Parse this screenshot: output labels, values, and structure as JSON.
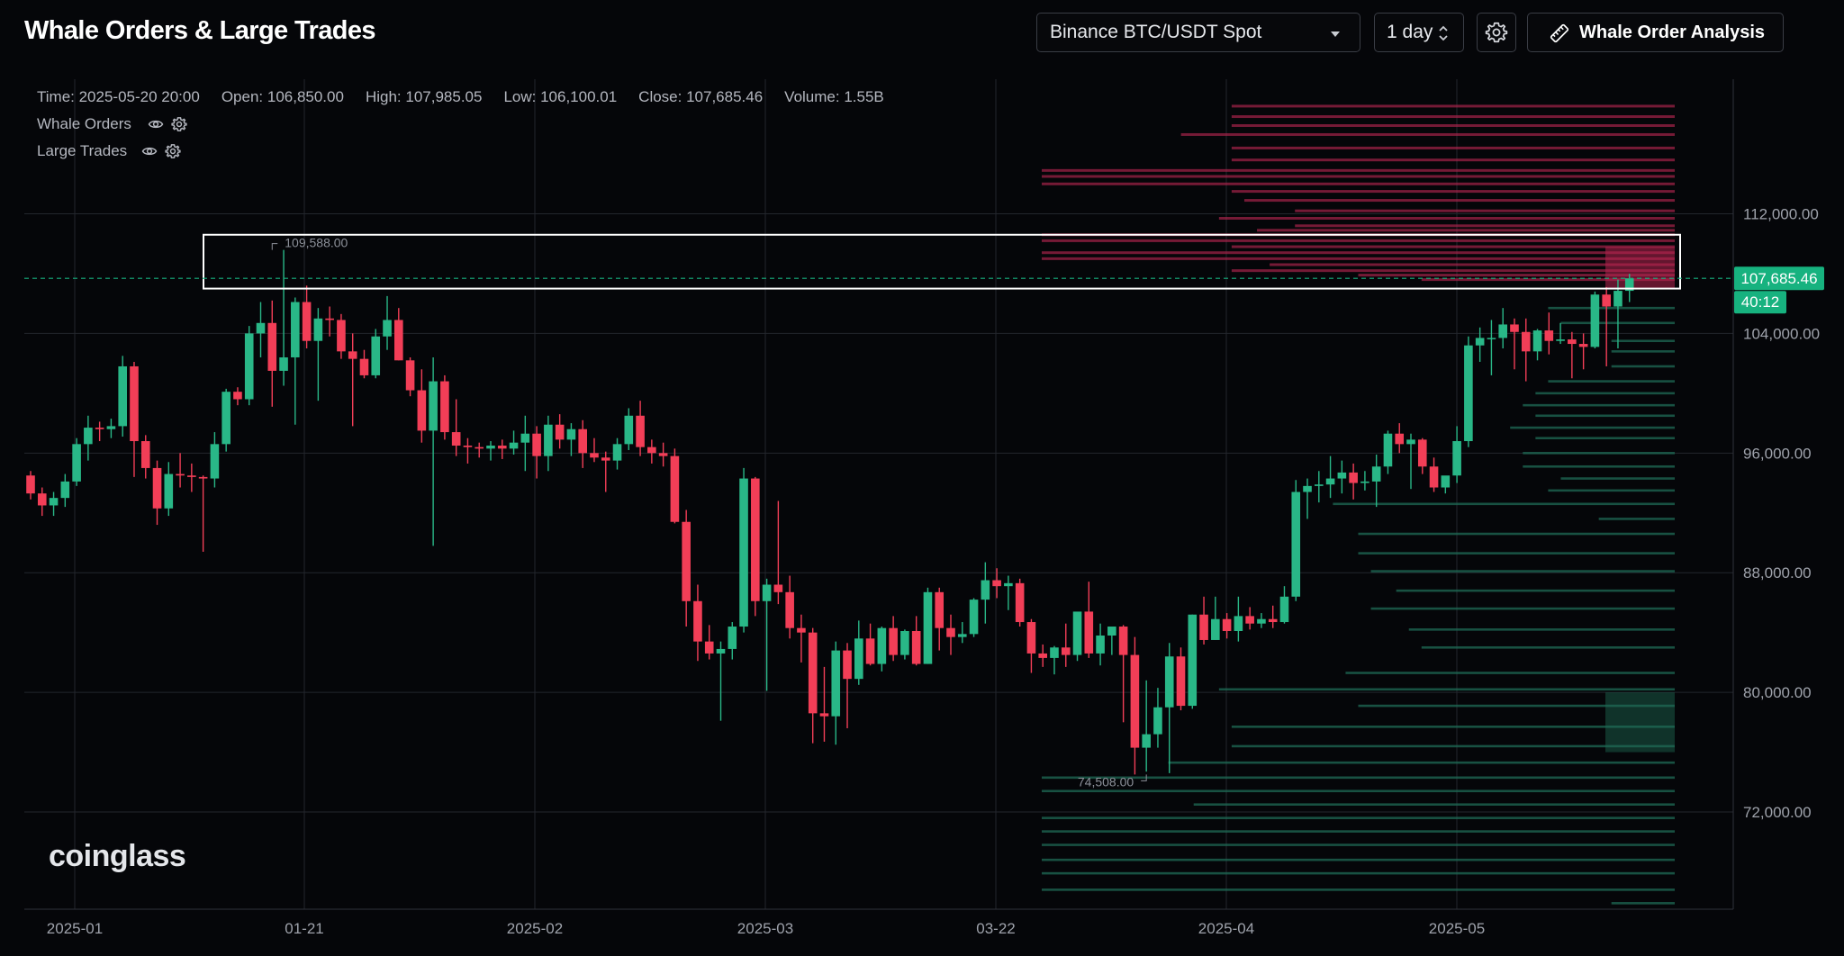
{
  "header": {
    "title": "Whale Orders & Large Trades",
    "market_select": "Binance BTC/USDT Spot",
    "interval_select": "1 day",
    "analysis_button_label": "Whale Order Analysis",
    "icons": [
      "updown-icon",
      "gear-icon",
      "ruler-icon",
      "chevron-down-icon"
    ]
  },
  "legend": {
    "time": "Time: 2025-05-20 20:00",
    "open": "Open: 106,850.00",
    "high": "High: 107,985.05",
    "low": "Low: 106,100.01",
    "close": "Close: 107,685.46",
    "volume": "Volume: 1.55B",
    "layers": [
      {
        "label": "Whale Orders",
        "icons": [
          "eye-icon",
          "gear-icon"
        ]
      },
      {
        "label": "Large Trades",
        "icons": [
          "eye-icon",
          "gear-icon"
        ]
      }
    ]
  },
  "watermark": "coinglass",
  "colors": {
    "up": "#29b787",
    "down": "#f23e57",
    "ask_wall": "#b2254f",
    "bid_wall": "#1f6b55",
    "grid": "#23262d",
    "price_tag": "#17b27f"
  },
  "chart_data": {
    "type": "candlestick",
    "x_tick_labels": [
      "2025-01",
      "01-21",
      "2025-02",
      "2025-03",
      "03-22",
      "2025-04",
      "2025-05"
    ],
    "y_tick_labels": [
      "112,000.00",
      "104,000.00",
      "96,000.00",
      "88,000.00",
      "80,000.00",
      "72,000.00"
    ],
    "y_ticks": [
      112000,
      104000,
      96000,
      88000,
      80000,
      72000
    ],
    "ylim": [
      65500,
      121000
    ],
    "last_price": {
      "value": 107685.46,
      "label": "107,685.46",
      "countdown": "40:12"
    },
    "annotations": {
      "max": {
        "value": 109588,
        "label": "109,588.00",
        "index": 21
      },
      "min": {
        "value": 74508,
        "label": "74,508.00",
        "index": 97
      }
    },
    "highlight_zone": [
      107000,
      110600
    ],
    "candles_ohlc": [
      [
        94500,
        94800,
        92900,
        93300
      ],
      [
        93300,
        93700,
        91800,
        92500
      ],
      [
        92500,
        93400,
        91800,
        93000
      ],
      [
        93000,
        94600,
        92400,
        94100
      ],
      [
        94100,
        97000,
        93800,
        96600
      ],
      [
        96600,
        98500,
        95500,
        97700
      ],
      [
        97700,
        98100,
        96800,
        97600
      ],
      [
        97600,
        98300,
        97000,
        97800
      ],
      [
        97800,
        102500,
        97100,
        101800
      ],
      [
        101800,
        102100,
        94400,
        96800
      ],
      [
        96800,
        97200,
        94300,
        95000
      ],
      [
        95000,
        95500,
        91200,
        92300
      ],
      [
        92300,
        95400,
        91800,
        94600
      ],
      [
        94600,
        96000,
        93700,
        94500
      ],
      [
        94500,
        95300,
        93400,
        94400
      ],
      [
        94400,
        94500,
        89400,
        94300
      ],
      [
        94300,
        97400,
        93700,
        96600
      ],
      [
        96600,
        100300,
        96100,
        100100
      ],
      [
        100100,
        100400,
        99200,
        99600
      ],
      [
        99600,
        104500,
        99200,
        104000
      ],
      [
        104000,
        106100,
        102400,
        104700
      ],
      [
        104700,
        106200,
        99100,
        101500
      ],
      [
        101500,
        109588,
        100500,
        102400
      ],
      [
        102400,
        106400,
        97900,
        106100
      ],
      [
        106100,
        107200,
        103000,
        103500
      ],
      [
        103500,
        105700,
        99500,
        105000
      ],
      [
        105000,
        105800,
        103800,
        104900
      ],
      [
        104900,
        105300,
        102300,
        102800
      ],
      [
        102800,
        104000,
        97800,
        102300
      ],
      [
        102300,
        102900,
        101000,
        101200
      ],
      [
        101200,
        104300,
        101000,
        103800
      ],
      [
        103800,
        106500,
        102900,
        104900
      ],
      [
        104900,
        105700,
        102200,
        102200
      ],
      [
        102200,
        102400,
        99800,
        100200
      ],
      [
        100200,
        101600,
        96700,
        97500
      ],
      [
        97500,
        102400,
        89800,
        100800
      ],
      [
        100800,
        101200,
        96900,
        97400
      ],
      [
        97400,
        99600,
        95800,
        96500
      ],
      [
        96500,
        97000,
        95300,
        96400
      ],
      [
        96400,
        96700,
        95700,
        96300
      ],
      [
        96300,
        96800,
        95500,
        96500
      ],
      [
        96500,
        96900,
        95600,
        96300
      ],
      [
        96300,
        97500,
        95900,
        96700
      ],
      [
        96700,
        98500,
        94800,
        97300
      ],
      [
        97300,
        97800,
        94300,
        95800
      ],
      [
        95800,
        98500,
        94800,
        97900
      ],
      [
        97900,
        98600,
        96300,
        96900
      ],
      [
        96900,
        98000,
        95800,
        97600
      ],
      [
        97600,
        98200,
        95000,
        96000
      ],
      [
        96000,
        97000,
        95400,
        95700
      ],
      [
        95700,
        96100,
        93400,
        95500
      ],
      [
        95500,
        97000,
        94900,
        96600
      ],
      [
        96600,
        99000,
        96200,
        98500
      ],
      [
        98500,
        99500,
        95800,
        96400
      ],
      [
        96400,
        96900,
        95300,
        96000
      ],
      [
        96000,
        96700,
        95100,
        95800
      ],
      [
        95800,
        96300,
        91300,
        91400
      ],
      [
        91400,
        92200,
        84400,
        86100
      ],
      [
        86100,
        87200,
        82100,
        83400
      ],
      [
        83400,
        84500,
        82200,
        82600
      ],
      [
        82600,
        83400,
        78100,
        82900
      ],
      [
        82900,
        84700,
        82200,
        84400
      ],
      [
        84400,
        95000,
        84000,
        94300
      ],
      [
        94300,
        94400,
        85100,
        86100
      ],
      [
        86100,
        87600,
        80100,
        87200
      ],
      [
        87200,
        92800,
        85900,
        86700
      ],
      [
        86700,
        87800,
        83600,
        84300
      ],
      [
        84300,
        85200,
        82000,
        84000
      ],
      [
        84000,
        84300,
        76600,
        78600
      ],
      [
        78600,
        81700,
        76700,
        78400
      ],
      [
        78400,
        83400,
        76500,
        82800
      ],
      [
        82800,
        83300,
        77600,
        80900
      ],
      [
        80900,
        84800,
        80500,
        83600
      ],
      [
        83600,
        84600,
        81800,
        81900
      ],
      [
        81900,
        84400,
        81400,
        84300
      ],
      [
        84300,
        85100,
        82100,
        82500
      ],
      [
        82500,
        84200,
        82200,
        84100
      ],
      [
        84100,
        85100,
        81800,
        81900
      ],
      [
        81900,
        87000,
        81900,
        86700
      ],
      [
        86700,
        87000,
        82800,
        84300
      ],
      [
        84300,
        85200,
        82500,
        83700
      ],
      [
        83700,
        84700,
        83300,
        83900
      ],
      [
        83900,
        86300,
        83700,
        86200
      ],
      [
        86200,
        88700,
        84600,
        87500
      ],
      [
        87500,
        88300,
        86300,
        87100
      ],
      [
        87100,
        87800,
        85500,
        87300
      ],
      [
        87300,
        87600,
        84400,
        84700
      ],
      [
        84700,
        84900,
        81300,
        82600
      ],
      [
        82600,
        83200,
        81700,
        82300
      ],
      [
        82300,
        83100,
        81200,
        83000
      ],
      [
        83000,
        84600,
        81700,
        82500
      ],
      [
        82500,
        85300,
        82100,
        85400
      ],
      [
        85400,
        87400,
        82300,
        82600
      ],
      [
        82600,
        84600,
        81800,
        83800
      ],
      [
        83800,
        84300,
        82500,
        84400
      ],
      [
        84400,
        84500,
        78000,
        82500
      ],
      [
        82500,
        83700,
        74508,
        76300
      ],
      [
        76300,
        80800,
        74700,
        77200
      ],
      [
        77200,
        80300,
        76300,
        79000
      ],
      [
        79000,
        83300,
        74600,
        82400
      ],
      [
        82400,
        83000,
        78800,
        79100
      ],
      [
        79100,
        85200,
        78900,
        85200
      ],
      [
        85200,
        86400,
        83200,
        83500
      ],
      [
        83500,
        86400,
        83500,
        84900
      ],
      [
        84900,
        85300,
        83600,
        84100
      ],
      [
        84100,
        86400,
        83400,
        85100
      ],
      [
        85100,
        85700,
        84200,
        84600
      ],
      [
        84600,
        85300,
        84300,
        84900
      ],
      [
        84900,
        85800,
        84300,
        84700
      ],
      [
        84700,
        87100,
        84600,
        86400
      ],
      [
        86400,
        94200,
        86100,
        93400
      ],
      [
        93400,
        94300,
        91600,
        93800
      ],
      [
        93800,
        94800,
        92700,
        93900
      ],
      [
        93900,
        95800,
        93000,
        94300
      ],
      [
        94300,
        95500,
        93300,
        94700
      ],
      [
        94700,
        95300,
        92900,
        94000
      ],
      [
        94000,
        94800,
        93500,
        94100
      ],
      [
        94100,
        95900,
        92400,
        95100
      ],
      [
        95100,
        97500,
        94600,
        97300
      ],
      [
        97300,
        98000,
        96000,
        96600
      ],
      [
        96600,
        97300,
        93600,
        96900
      ],
      [
        96900,
        97000,
        94600,
        95100
      ],
      [
        95100,
        95700,
        93400,
        93700
      ],
      [
        93700,
        94400,
        93300,
        94500
      ],
      [
        94500,
        97800,
        94000,
        96800
      ],
      [
        96800,
        103800,
        96400,
        103200
      ],
      [
        103200,
        104400,
        102100,
        103700
      ],
      [
        103700,
        104900,
        101200,
        103700
      ],
      [
        103700,
        105700,
        103000,
        104600
      ],
      [
        104600,
        105000,
        101600,
        104100
      ],
      [
        104100,
        105000,
        100800,
        102800
      ],
      [
        102800,
        104300,
        102200,
        104200
      ],
      [
        104200,
        105400,
        102600,
        103500
      ],
      [
        103500,
        104700,
        103300,
        103600
      ],
      [
        103600,
        104100,
        101000,
        103300
      ],
      [
        103300,
        104000,
        101600,
        103100
      ],
      [
        103100,
        106800,
        103000,
        106600
      ],
      [
        106600,
        107100,
        101800,
        105800
      ],
      [
        105800,
        107600,
        103000,
        106850
      ],
      [
        106850,
        107985,
        106100,
        107685.46
      ]
    ],
    "whale_ask_walls": [
      [
        119200,
        0.7
      ],
      [
        118500,
        0.7
      ],
      [
        117900,
        0.7
      ],
      [
        117300,
        0.78
      ],
      [
        116400,
        0.7
      ],
      [
        115600,
        0.7
      ],
      [
        114900,
        1.0
      ],
      [
        114500,
        1.0
      ],
      [
        114000,
        1.0
      ],
      [
        113500,
        0.7
      ],
      [
        112900,
        0.68
      ],
      [
        112200,
        0.6
      ],
      [
        111700,
        0.72
      ],
      [
        111200,
        0.6
      ],
      [
        110900,
        0.66
      ],
      [
        110600,
        1.0
      ],
      [
        110200,
        1.0
      ],
      [
        109800,
        0.7
      ],
      [
        109400,
        1.0
      ],
      [
        109000,
        1.0
      ],
      [
        108600,
        0.64
      ],
      [
        108200,
        0.7
      ],
      [
        107900,
        0.5
      ],
      [
        107600,
        0.4
      ]
    ],
    "whale_bid_walls": [
      [
        105700,
        0.2
      ],
      [
        104700,
        0.18
      ],
      [
        103500,
        0.1
      ],
      [
        102800,
        0.1
      ],
      [
        101800,
        0.1
      ],
      [
        100800,
        0.2
      ],
      [
        100000,
        0.22
      ],
      [
        99200,
        0.24
      ],
      [
        98500,
        0.22
      ],
      [
        97700,
        0.26
      ],
      [
        97000,
        0.22
      ],
      [
        96000,
        0.24
      ],
      [
        95100,
        0.24
      ],
      [
        94300,
        0.18
      ],
      [
        93500,
        0.2
      ],
      [
        92600,
        0.54
      ],
      [
        91600,
        0.12
      ],
      [
        90600,
        0.5
      ],
      [
        89300,
        0.5
      ],
      [
        88100,
        0.48
      ],
      [
        86800,
        0.44
      ],
      [
        85600,
        0.48
      ],
      [
        84200,
        0.42
      ],
      [
        83000,
        0.4
      ],
      [
        81300,
        0.52
      ],
      [
        80200,
        0.72
      ],
      [
        79100,
        0.5
      ],
      [
        77700,
        0.7
      ],
      [
        76400,
        0.7
      ],
      [
        75300,
        0.8
      ],
      [
        74300,
        1.0
      ],
      [
        73400,
        1.0
      ],
      [
        72500,
        0.76
      ],
      [
        71600,
        1.0
      ],
      [
        70700,
        1.0
      ],
      [
        69800,
        1.0
      ],
      [
        68800,
        1.0
      ],
      [
        67900,
        1.0
      ],
      [
        66800,
        1.0
      ],
      [
        65900,
        0.1
      ]
    ]
  }
}
